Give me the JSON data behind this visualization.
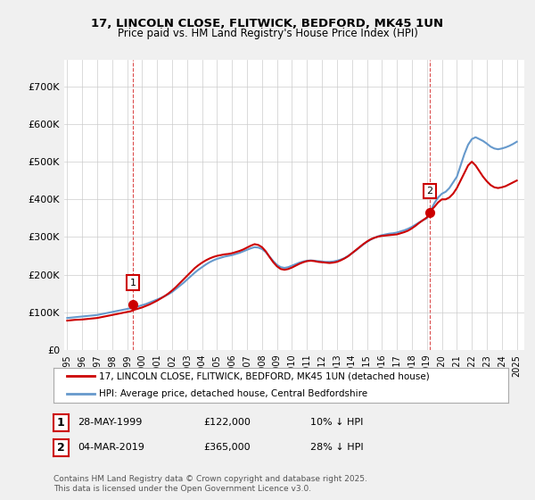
{
  "title_line1": "17, LINCOLN CLOSE, FLITWICK, BEDFORD, MK45 1UN",
  "title_line2": "Price paid vs. HM Land Registry's House Price Index (HPI)",
  "ylabel": "",
  "background_color": "#f0f0f0",
  "plot_bg_color": "#ffffff",
  "legend_label_red": "17, LINCOLN CLOSE, FLITWICK, BEDFORD, MK45 1UN (detached house)",
  "legend_label_blue": "HPI: Average price, detached house, Central Bedfordshire",
  "footnote": "Contains HM Land Registry data © Crown copyright and database right 2025.\nThis data is licensed under the Open Government Licence v3.0.",
  "annotation1_label": "1",
  "annotation1_date": "28-MAY-1999",
  "annotation1_price": "£122,000",
  "annotation1_hpi": "10% ↓ HPI",
  "annotation2_label": "2",
  "annotation2_date": "04-MAR-2019",
  "annotation2_price": "£365,000",
  "annotation2_hpi": "28% ↓ HPI",
  "red_color": "#cc0000",
  "blue_color": "#6699cc",
  "marker_color_red": "#cc0000",
  "ylim_min": 0,
  "ylim_max": 750000,
  "yticks": [
    0,
    100000,
    200000,
    300000,
    400000,
    500000,
    600000,
    700000
  ],
  "ytick_labels": [
    "£0",
    "£100K",
    "£200K",
    "£300K",
    "£400K",
    "£500K",
    "£600K",
    "£700K"
  ],
  "anno1_x": 1999.4,
  "anno1_y": 122000,
  "anno2_x": 2019.17,
  "anno2_y": 365000,
  "vline1_x": 1999.4,
  "vline2_x": 2019.17,
  "hpi_x": [
    1995,
    1995.25,
    1995.5,
    1995.75,
    1996,
    1996.25,
    1996.5,
    1996.75,
    1997,
    1997.25,
    1997.5,
    1997.75,
    1998,
    1998.25,
    1998.5,
    1998.75,
    1999,
    1999.25,
    1999.5,
    1999.75,
    2000,
    2000.25,
    2000.5,
    2000.75,
    2001,
    2001.25,
    2001.5,
    2001.75,
    2002,
    2002.25,
    2002.5,
    2002.75,
    2003,
    2003.25,
    2003.5,
    2003.75,
    2004,
    2004.25,
    2004.5,
    2004.75,
    2005,
    2005.25,
    2005.5,
    2005.75,
    2006,
    2006.25,
    2006.5,
    2006.75,
    2007,
    2007.25,
    2007.5,
    2007.75,
    2008,
    2008.25,
    2008.5,
    2008.75,
    2009,
    2009.25,
    2009.5,
    2009.75,
    2010,
    2010.25,
    2010.5,
    2010.75,
    2011,
    2011.25,
    2011.5,
    2011.75,
    2012,
    2012.25,
    2012.5,
    2012.75,
    2013,
    2013.25,
    2013.5,
    2013.75,
    2014,
    2014.25,
    2014.5,
    2014.75,
    2015,
    2015.25,
    2015.5,
    2015.75,
    2016,
    2016.25,
    2016.5,
    2016.75,
    2017,
    2017.25,
    2017.5,
    2017.75,
    2018,
    2018.25,
    2018.5,
    2018.75,
    2019,
    2019.25,
    2019.5,
    2019.75,
    2020,
    2020.25,
    2020.5,
    2020.75,
    2021,
    2021.25,
    2021.5,
    2021.75,
    2022,
    2022.25,
    2022.5,
    2022.75,
    2023,
    2023.25,
    2023.5,
    2023.75,
    2024,
    2024.25,
    2024.5,
    2024.75,
    2025
  ],
  "hpi_y": [
    85000,
    86000,
    87000,
    88000,
    89000,
    90000,
    91000,
    92000,
    93000,
    95000,
    97000,
    99000,
    101000,
    103000,
    105000,
    107000,
    109000,
    111000,
    113000,
    116000,
    119000,
    122000,
    126000,
    130000,
    134000,
    138000,
    143000,
    148000,
    154000,
    162000,
    170000,
    178000,
    187000,
    196000,
    205000,
    213000,
    220000,
    227000,
    233000,
    238000,
    242000,
    245000,
    248000,
    250000,
    252000,
    255000,
    258000,
    262000,
    266000,
    270000,
    273000,
    272000,
    268000,
    260000,
    248000,
    236000,
    226000,
    220000,
    218000,
    220000,
    224000,
    228000,
    232000,
    235000,
    237000,
    238000,
    237000,
    236000,
    235000,
    234000,
    234000,
    235000,
    237000,
    240000,
    244000,
    250000,
    257000,
    264000,
    272000,
    280000,
    287000,
    293000,
    298000,
    302000,
    305000,
    307000,
    309000,
    310000,
    312000,
    315000,
    318000,
    322000,
    327000,
    333000,
    339000,
    345000,
    350000,
    370000,
    390000,
    405000,
    415000,
    420000,
    430000,
    445000,
    460000,
    490000,
    520000,
    545000,
    560000,
    565000,
    560000,
    555000,
    548000,
    540000,
    535000,
    533000,
    535000,
    538000,
    542000,
    547000,
    553000
  ],
  "red_x": [
    1995,
    1995.25,
    1995.5,
    1995.75,
    1996,
    1996.25,
    1996.5,
    1996.75,
    1997,
    1997.25,
    1997.5,
    1997.75,
    1998,
    1998.25,
    1998.5,
    1998.75,
    1999,
    1999.25,
    1999.5,
    1999.75,
    2000,
    2000.25,
    2000.5,
    2000.75,
    2001,
    2001.25,
    2001.5,
    2001.75,
    2002,
    2002.25,
    2002.5,
    2002.75,
    2003,
    2003.25,
    2003.5,
    2003.75,
    2004,
    2004.25,
    2004.5,
    2004.75,
    2005,
    2005.25,
    2005.5,
    2005.75,
    2006,
    2006.25,
    2006.5,
    2006.75,
    2007,
    2007.25,
    2007.5,
    2007.75,
    2008,
    2008.25,
    2008.5,
    2008.75,
    2009,
    2009.25,
    2009.5,
    2009.75,
    2010,
    2010.25,
    2010.5,
    2010.75,
    2011,
    2011.25,
    2011.5,
    2011.75,
    2012,
    2012.25,
    2012.5,
    2012.75,
    2013,
    2013.25,
    2013.5,
    2013.75,
    2014,
    2014.25,
    2014.5,
    2014.75,
    2015,
    2015.25,
    2015.5,
    2015.75,
    2016,
    2016.25,
    2016.5,
    2016.75,
    2017,
    2017.25,
    2017.5,
    2017.75,
    2018,
    2018.25,
    2018.5,
    2018.75,
    2019,
    2019.25,
    2019.5,
    2019.75,
    2020,
    2020.25,
    2020.5,
    2020.75,
    2021,
    2021.25,
    2021.5,
    2021.75,
    2022,
    2022.25,
    2022.5,
    2022.75,
    2023,
    2023.25,
    2023.5,
    2023.75,
    2024,
    2024.25,
    2024.5,
    2024.75,
    2025
  ],
  "red_y": [
    78000,
    79000,
    80000,
    80500,
    81000,
    82000,
    83000,
    84000,
    85000,
    87000,
    89000,
    91000,
    93000,
    95000,
    97000,
    99000,
    101000,
    103000,
    107000,
    110000,
    113000,
    117000,
    121000,
    126000,
    131000,
    137000,
    143000,
    150000,
    158000,
    167000,
    177000,
    187000,
    197000,
    207000,
    217000,
    225000,
    232000,
    238000,
    243000,
    247000,
    250000,
    252000,
    254000,
    255000,
    257000,
    260000,
    263000,
    267000,
    272000,
    277000,
    281000,
    279000,
    273000,
    262000,
    247000,
    233000,
    222000,
    215000,
    213000,
    215000,
    219000,
    224000,
    229000,
    233000,
    236000,
    237000,
    236000,
    234000,
    233000,
    232000,
    231000,
    232000,
    234000,
    238000,
    243000,
    249000,
    257000,
    265000,
    273000,
    281000,
    288000,
    294000,
    298000,
    301000,
    303000,
    304000,
    305000,
    306000,
    307000,
    310000,
    313000,
    317000,
    323000,
    330000,
    338000,
    345000,
    352000,
    370000,
    380000,
    392000,
    400000,
    400000,
    405000,
    415000,
    430000,
    450000,
    470000,
    490000,
    500000,
    490000,
    475000,
    460000,
    448000,
    438000,
    432000,
    430000,
    432000,
    435000,
    440000,
    445000,
    450000
  ],
  "xtick_years": [
    1995,
    1996,
    1997,
    1998,
    1999,
    2000,
    2001,
    2002,
    2003,
    2004,
    2005,
    2006,
    2007,
    2008,
    2009,
    2010,
    2011,
    2012,
    2013,
    2014,
    2015,
    2016,
    2017,
    2018,
    2019,
    2020,
    2021,
    2022,
    2023,
    2024,
    2025
  ],
  "xlim_min": 1994.8,
  "xlim_max": 2025.5
}
